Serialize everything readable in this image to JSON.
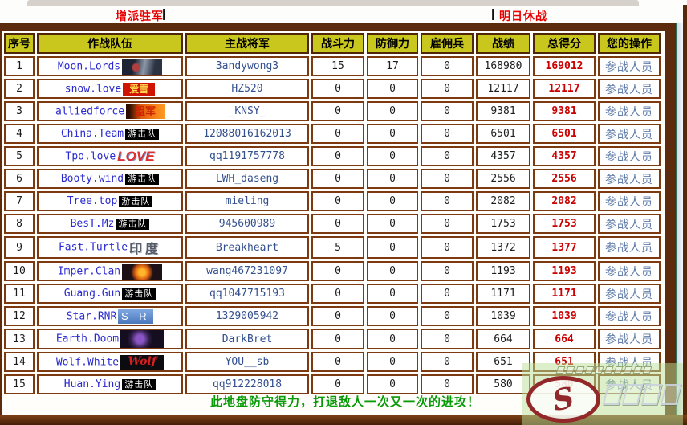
{
  "nav": {
    "garrison_link": "增派驻军",
    "sep_left": "|",
    "sep_right": "|",
    "truce_link": "明日休战"
  },
  "table": {
    "columns": [
      "序号",
      "作战队伍",
      "主战将军",
      "战斗力",
      "防御力",
      "雇佣兵",
      "战绩",
      "总得分",
      "您的操作"
    ],
    "action_label": "参战人员",
    "rows": [
      {
        "rank": "1",
        "team": "Moon.Lords",
        "badge_style": "photo1",
        "badge_text": "",
        "general": "3andywong3",
        "attack": "15",
        "defense": "17",
        "mercenary": "0",
        "record": "168980",
        "score": "169012"
      },
      {
        "rank": "2",
        "team": "snow.love",
        "badge_style": "red",
        "badge_text": "爱雪",
        "general": "HZ520",
        "attack": "0",
        "defense": "0",
        "mercenary": "0",
        "record": "12117",
        "score": "12117"
      },
      {
        "rank": "3",
        "team": "alliedforce",
        "badge_style": "fire",
        "badge_text": "盟军",
        "general": "_KNSY_",
        "attack": "0",
        "defense": "0",
        "mercenary": "0",
        "record": "9381",
        "score": "9381"
      },
      {
        "rank": "4",
        "team": "China.Team",
        "badge_style": "black",
        "badge_text": "游击队",
        "general": "12088016162013",
        "attack": "0",
        "defense": "0",
        "mercenary": "0",
        "record": "6501",
        "score": "6501"
      },
      {
        "rank": "5",
        "team": "Tpo.love",
        "badge_style": "love",
        "badge_text": "LOVE",
        "general": "qq1191757778",
        "attack": "0",
        "defense": "0",
        "mercenary": "0",
        "record": "4357",
        "score": "4357"
      },
      {
        "rank": "6",
        "team": "Booty.wind",
        "badge_style": "black",
        "badge_text": "游击队",
        "general": "LWH_daseng",
        "attack": "0",
        "defense": "0",
        "mercenary": "0",
        "record": "2556",
        "score": "2556"
      },
      {
        "rank": "7",
        "team": "Tree.top",
        "badge_style": "black",
        "badge_text": "游击队",
        "general": "mieling",
        "attack": "0",
        "defense": "0",
        "mercenary": "0",
        "record": "2082",
        "score": "2082"
      },
      {
        "rank": "8",
        "team": "BesT.Mz",
        "badge_style": "black",
        "badge_text": "游击队",
        "general": "945600989",
        "attack": "0",
        "defense": "0",
        "mercenary": "0",
        "record": "1753",
        "score": "1753"
      },
      {
        "rank": "9",
        "team": "Fast.Turtle",
        "badge_style": "india",
        "badge_text": "印度",
        "general": "Breakheart",
        "attack": "5",
        "defense": "0",
        "mercenary": "0",
        "record": "1372",
        "score": "1377"
      },
      {
        "rank": "10",
        "team": "Imper.Clan",
        "badge_style": "flame",
        "badge_text": "",
        "general": "wang467231097",
        "attack": "0",
        "defense": "0",
        "mercenary": "0",
        "record": "1193",
        "score": "1193"
      },
      {
        "rank": "11",
        "team": "Guang.Gun",
        "badge_style": "black",
        "badge_text": "游击队",
        "general": "qq1047715193",
        "attack": "0",
        "defense": "0",
        "mercenary": "0",
        "record": "1171",
        "score": "1171"
      },
      {
        "rank": "12",
        "team": "Star.RNR",
        "badge_style": "blue",
        "badge_text": "S R",
        "general": "1329005942",
        "attack": "0",
        "defense": "0",
        "mercenary": "0",
        "record": "1039",
        "score": "1039"
      },
      {
        "rank": "13",
        "team": "Earth.Doom",
        "badge_style": "purple",
        "badge_text": "",
        "general": "DarkBret",
        "attack": "0",
        "defense": "0",
        "mercenary": "0",
        "record": "664",
        "score": "664"
      },
      {
        "rank": "14",
        "team": "Wolf.White",
        "badge_style": "wolf",
        "badge_text": "Wolf",
        "general": "YOU__sb",
        "attack": "0",
        "defense": "0",
        "mercenary": "0",
        "record": "651",
        "score": "651"
      },
      {
        "rank": "15",
        "team": "Huan.Ying",
        "badge_style": "black",
        "badge_text": "游击队",
        "general": "qq912228018",
        "attack": "0",
        "defense": "0",
        "mercenary": "0",
        "record": "580",
        "score": "580"
      }
    ]
  },
  "footer": {
    "message": "此地盘防守得力，打退敌人一次又一次的进攻！"
  },
  "watermark": {
    "logo_letter": "S"
  },
  "colors": {
    "header_bg": "#c9c61e",
    "frame_brown": "#5c2b0e",
    "nav_red": "#e80000",
    "score_red": "#cc0000",
    "message_green": "#089a08",
    "team_blue": "#2a2ad0",
    "general_blue": "#33508e",
    "action_link": "#5f7ca8"
  }
}
